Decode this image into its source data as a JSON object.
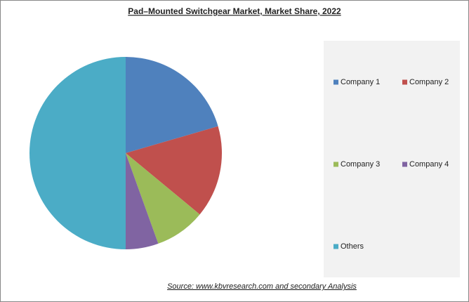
{
  "chart_data": {
    "type": "pie",
    "title": "Pad–Mounted Switchgear Market, Market Share, 2022",
    "source": "Source:  www.kbvresearch.com   and secondary Analysis",
    "categories": [
      "Company 1",
      "Company 2",
      "Company 3",
      "Company 4",
      "Others"
    ],
    "values": [
      20.5,
      15.5,
      8.5,
      5.5,
      50
    ],
    "colors": [
      "#4f81bd",
      "#c0504d",
      "#9bbb59",
      "#8064a2",
      "#4bacc6"
    ]
  }
}
